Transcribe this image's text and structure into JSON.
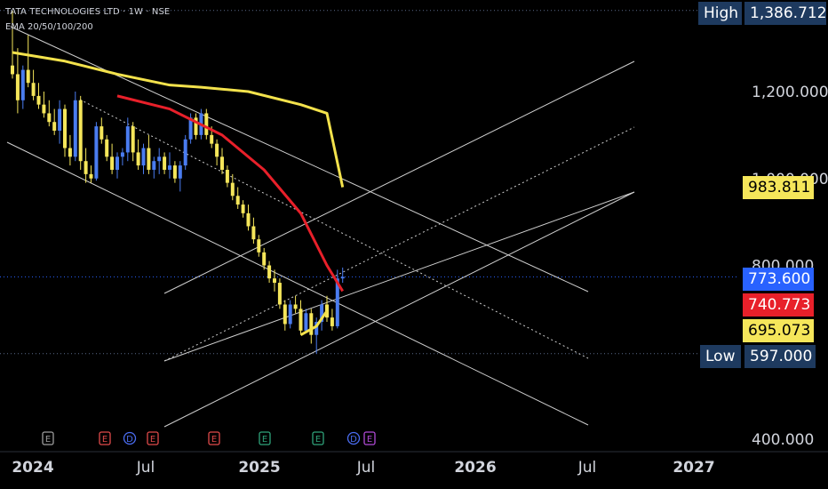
{
  "header": {
    "title": "TATA TECHNOLOGIES LTD · 1W · NSE",
    "indicator": "EMA 20/50/100/200"
  },
  "price_tags": {
    "high_label": "High",
    "high_value": "1,386.712",
    "low_label": "Low",
    "low_value": "597.000",
    "ema_yellow": "983.811",
    "last_price": "773.600",
    "ema_red": "740.773",
    "ema_short": "695.073"
  },
  "colors": {
    "background": "#000000",
    "candle_up": "#4a7cf0",
    "candle_down": "#f5e65a",
    "ema_200": "#f3e24c",
    "ema_50": "#e8202a",
    "last_price_tag": "#2962ff",
    "channel_lines": "#cfcfcf"
  },
  "events": [
    {
      "letter": "E",
      "color": "#9e9e9e"
    },
    {
      "letter": "E",
      "color": "#e04a4a"
    },
    {
      "letter": "D",
      "color": "#4a6cf0"
    },
    {
      "letter": "E",
      "color": "#e04a4a"
    },
    {
      "letter": "E",
      "color": "#e04a4a"
    },
    {
      "letter": "E",
      "color": "#2fa37a"
    },
    {
      "letter": "E",
      "color": "#2fa37a"
    },
    {
      "letter": "D",
      "color": "#4a6cf0"
    },
    {
      "letter": "E",
      "color": "#b14ad6"
    }
  ],
  "chart_data": {
    "type": "candlestick",
    "title": "TATA TECHNOLOGIES LTD · 1W · NSE",
    "x_ticks": [
      "2024",
      "Jul",
      "2025",
      "Jul",
      "2026",
      "Jul",
      "2027"
    ],
    "y_ticks": [
      {
        "value": 1200,
        "label": "1,200.000"
      },
      {
        "value": 1000,
        "label": "1,000.000"
      },
      {
        "value": 800,
        "label": "800.000"
      },
      {
        "value": 400,
        "label": "400.000"
      }
    ],
    "ylim": [
      380,
      1450
    ],
    "high": 1386.712,
    "low": 597.0,
    "grid": false,
    "series": [
      {
        "name": "EMA 20/50/100/200"
      }
    ],
    "candles": [
      [
        1260,
        1386,
        1230,
        1240
      ],
      [
        1240,
        1300,
        1150,
        1180
      ],
      [
        1180,
        1260,
        1160,
        1250
      ],
      [
        1250,
        1330,
        1210,
        1220
      ],
      [
        1220,
        1250,
        1180,
        1190
      ],
      [
        1190,
        1220,
        1160,
        1170
      ],
      [
        1170,
        1200,
        1140,
        1150
      ],
      [
        1150,
        1180,
        1120,
        1130
      ],
      [
        1130,
        1160,
        1100,
        1110
      ],
      [
        1110,
        1180,
        1080,
        1160
      ],
      [
        1160,
        1170,
        1050,
        1070
      ],
      [
        1070,
        1100,
        1030,
        1050
      ],
      [
        1050,
        1200,
        1040,
        1180
      ],
      [
        1180,
        1190,
        1020,
        1040
      ],
      [
        1040,
        1070,
        990,
        1010
      ],
      [
        1010,
        1030,
        990,
        1000
      ],
      [
        1000,
        1130,
        995,
        1120
      ],
      [
        1120,
        1140,
        1080,
        1090
      ],
      [
        1090,
        1100,
        1040,
        1050
      ],
      [
        1050,
        1080,
        1010,
        1020
      ],
      [
        1020,
        1060,
        1000,
        1050
      ],
      [
        1050,
        1070,
        1030,
        1060
      ],
      [
        1060,
        1140,
        1040,
        1120
      ],
      [
        1120,
        1130,
        1040,
        1060
      ],
      [
        1060,
        1090,
        1020,
        1030
      ],
      [
        1030,
        1080,
        1010,
        1070
      ],
      [
        1070,
        1100,
        1010,
        1020
      ],
      [
        1020,
        1050,
        1000,
        1040
      ],
      [
        1040,
        1070,
        1010,
        1050
      ],
      [
        1050,
        1060,
        1010,
        1020
      ],
      [
        1020,
        1060,
        1000,
        1030
      ],
      [
        1030,
        1040,
        990,
        1000
      ],
      [
        1000,
        1040,
        970,
        1030
      ],
      [
        1030,
        1100,
        1020,
        1090
      ],
      [
        1090,
        1150,
        1080,
        1140
      ],
      [
        1140,
        1150,
        1090,
        1100
      ],
      [
        1100,
        1160,
        1090,
        1150
      ],
      [
        1150,
        1160,
        1090,
        1100
      ],
      [
        1100,
        1120,
        1070,
        1080
      ],
      [
        1080,
        1090,
        1030,
        1050
      ],
      [
        1050,
        1070,
        1010,
        1020
      ],
      [
        1020,
        1030,
        980,
        990
      ],
      [
        990,
        1010,
        950,
        960
      ],
      [
        960,
        980,
        930,
        940
      ],
      [
        940,
        950,
        910,
        920
      ],
      [
        920,
        940,
        880,
        890
      ],
      [
        890,
        910,
        850,
        860
      ],
      [
        860,
        870,
        820,
        830
      ],
      [
        830,
        840,
        790,
        800
      ],
      [
        800,
        810,
        760,
        770
      ],
      [
        770,
        790,
        740,
        760
      ],
      [
        760,
        770,
        700,
        710
      ],
      [
        710,
        720,
        650,
        665
      ],
      [
        665,
        720,
        655,
        710
      ],
      [
        710,
        730,
        690,
        700
      ],
      [
        700,
        720,
        640,
        650
      ],
      [
        650,
        700,
        645,
        690
      ],
      [
        690,
        700,
        620,
        640
      ],
      [
        640,
        680,
        597,
        670
      ],
      [
        670,
        720,
        650,
        710
      ],
      [
        710,
        730,
        670,
        680
      ],
      [
        680,
        700,
        650,
        660
      ],
      [
        660,
        790,
        655,
        770
      ],
      [
        770,
        795,
        760,
        773.6
      ]
    ],
    "ema_200": [
      [
        0,
        1290
      ],
      [
        10,
        1270
      ],
      [
        20,
        1240
      ],
      [
        30,
        1215
      ],
      [
        36,
        1210
      ],
      [
        45,
        1200
      ],
      [
        55,
        1170
      ],
      [
        60,
        1150
      ],
      [
        63,
        980
      ]
    ],
    "ema_50": [
      [
        20,
        1190
      ],
      [
        30,
        1160
      ],
      [
        40,
        1100
      ],
      [
        48,
        1020
      ],
      [
        55,
        920
      ],
      [
        60,
        800
      ],
      [
        63,
        740.773
      ]
    ],
    "ema_short": [
      [
        55,
        640
      ],
      [
        58,
        660
      ],
      [
        60,
        695.073
      ]
    ]
  }
}
